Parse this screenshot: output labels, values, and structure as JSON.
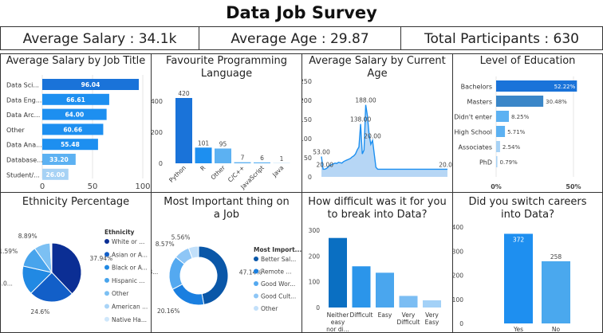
{
  "title": "Data Job Survey",
  "kpis": [
    {
      "label": "Average Salary : 34.1k"
    },
    {
      "label": "Average Age : 29.87"
    },
    {
      "label": "Total Participants : 630"
    }
  ],
  "colors": {
    "dark": "#0a57a8",
    "mid": "#1a73d9",
    "blue": "#1d8ff0",
    "light": "#5cb1f2",
    "pale": "#a7d2f5"
  },
  "chart_data": [
    {
      "id": "salary_by_title",
      "type": "bar",
      "orientation": "horizontal",
      "title": "Average Salary by Job Title",
      "categories": [
        "Data Sci...",
        "Data Eng...",
        "Data Arc...",
        "Other",
        "Data Ana...",
        "Database...",
        "Student/..."
      ],
      "values": [
        96.04,
        66.61,
        64.0,
        60.66,
        55.48,
        33.2,
        26.0
      ],
      "value_labels": [
        "96.04",
        "66.61",
        "64.00",
        "60.66",
        "55.48",
        "33.20",
        "26.00"
      ],
      "xticks": [
        "0",
        "50",
        "100"
      ],
      "xlim": [
        0,
        100
      ]
    },
    {
      "id": "fav_language",
      "type": "bar",
      "title": "Favourite Programming Language",
      "categories": [
        "Python",
        "R",
        "Other",
        "C/C++",
        "JavaScript",
        "Java"
      ],
      "values": [
        420,
        101,
        95,
        7,
        6,
        1
      ],
      "value_labels": [
        "420",
        "101",
        "95",
        "7",
        "6",
        "1"
      ],
      "ylim": [
        0,
        420
      ],
      "yticks": [
        "0",
        "200",
        "400"
      ]
    },
    {
      "id": "salary_by_age",
      "type": "area",
      "title": "Average Salary by Current Age",
      "x": [
        18,
        19,
        20,
        21,
        22,
        23,
        24,
        25,
        26,
        27,
        28,
        29,
        30,
        31,
        32,
        33,
        34,
        35,
        36,
        37,
        38,
        39,
        40,
        41,
        42,
        43,
        44,
        45,
        46,
        47,
        48,
        49,
        50,
        51,
        52,
        53,
        54,
        55,
        56,
        57,
        58,
        59,
        60,
        61,
        62,
        63,
        64,
        65,
        66,
        67,
        68,
        69,
        70,
        71,
        72,
        73,
        74,
        75,
        76,
        77,
        78,
        79,
        80,
        81,
        82,
        83,
        84,
        85,
        86,
        87,
        88,
        89,
        90,
        91,
        92
      ],
      "values": [
        53,
        20,
        20,
        22,
        26,
        30,
        32,
        34,
        36,
        35,
        38,
        37,
        36,
        40,
        42,
        44,
        46,
        48,
        52,
        55,
        60,
        70,
        78,
        138,
        60,
        70,
        188,
        160,
        110,
        85,
        95,
        60,
        25,
        20,
        20,
        20,
        20,
        20,
        20,
        20,
        20,
        20,
        20,
        20,
        20,
        20,
        20,
        20,
        20,
        20,
        20,
        20,
        20,
        20,
        20,
        20,
        20,
        20,
        20,
        20,
        20,
        20,
        20,
        20,
        20,
        20,
        20,
        20,
        20,
        20,
        20,
        20,
        20,
        20,
        20
      ],
      "data_labels": [
        {
          "x": 18,
          "text": "53.00"
        },
        {
          "x": 20,
          "text": "20.00"
        },
        {
          "x": 41,
          "text": "138.00"
        },
        {
          "x": 44,
          "text": "188.00"
        },
        {
          "x": 48,
          "text": "20.00"
        },
        {
          "x": 92,
          "text": "20.00"
        }
      ],
      "ylim": [
        0,
        260
      ],
      "yticks": [
        "0",
        "50",
        "100",
        "150",
        "200",
        "250"
      ]
    },
    {
      "id": "education",
      "type": "bar",
      "orientation": "horizontal",
      "title": "Level of Education",
      "categories": [
        "Bachelors",
        "Masters",
        "Didn't enter",
        "High School",
        "Associates",
        "PhD"
      ],
      "values": [
        52.22,
        30.48,
        8.25,
        5.71,
        2.54,
        0.79
      ],
      "value_labels": [
        "52.22%",
        "30.48%",
        "8.25%",
        "5.71%",
        "2.54%",
        "0.79%"
      ],
      "xticks": [
        "0%",
        "50%"
      ],
      "xlim": [
        0,
        55
      ]
    },
    {
      "id": "ethnicity",
      "type": "pie",
      "title": "Ethnicity Percentage",
      "legend_title": "Ethnicity",
      "legend_placement": "right",
      "labels": [
        "White or ...",
        "Asian or A...",
        "Black or A...",
        "Hispanic ...",
        "Other",
        "American ...",
        "Native Ha..."
      ],
      "values": [
        37.94,
        24.6,
        16.0,
        11.59,
        8.89,
        0.6,
        0.38
      ],
      "slice_labels": [
        "37.94%",
        "24.6%",
        "16.0...",
        "11.59%",
        "8.89%",
        "",
        ""
      ],
      "colors": [
        "#0b2e94",
        "#125fc8",
        "#2189e3",
        "#48a4ec",
        "#7cc0f3",
        "#a9d4f7",
        "#cfe7fb"
      ]
    },
    {
      "id": "important_thing",
      "type": "pie",
      "donut": true,
      "title": "Most Important thing on a Job",
      "legend_title": "Most Import...",
      "legend_placement": "right",
      "labels": [
        "Better Sal...",
        "Remote ...",
        "Good Wor...",
        "Good Cult...",
        "Other"
      ],
      "values": [
        47.14,
        20.16,
        18.6,
        8.57,
        5.56
      ],
      "slice_labels": [
        "47.14%",
        "20.16%",
        "18...",
        "8.57%",
        "5.56%"
      ],
      "colors": [
        "#0a57a8",
        "#1a7fe0",
        "#54a9f0",
        "#8ec6f6",
        "#c2e0fa"
      ]
    },
    {
      "id": "difficulty",
      "type": "bar",
      "title": "How difficult was it for you to break into Data?",
      "categories": [
        "Neither easy nor di...",
        "Difficult",
        "Easy",
        "Very Difficult",
        "Very Easy"
      ],
      "category_lines": [
        [
          "Neither",
          "easy",
          "nor di..."
        ],
        [
          "Difficult"
        ],
        [
          "Easy"
        ],
        [
          "Very",
          "Difficult"
        ],
        [
          "Very",
          "Easy"
        ]
      ],
      "values": [
        270,
        160,
        135,
        45,
        28
      ],
      "colors": [
        "#0a6fc2",
        "#2b95ea",
        "#4aa6ee",
        "#7bbdf3",
        "#a3d1f7"
      ],
      "ylim": [
        0,
        300
      ],
      "yticks": [
        "0",
        "100",
        "200",
        "300"
      ]
    },
    {
      "id": "switch_careers",
      "type": "bar",
      "title": "Did you switch careers into Data?",
      "categories": [
        "Yes",
        "No"
      ],
      "values": [
        372,
        258
      ],
      "value_labels": [
        "372",
        "258"
      ],
      "colors": [
        "#1e8ff0",
        "#4aa8ee"
      ],
      "ylim": [
        0,
        400
      ],
      "yticks": [
        "0",
        "100",
        "200",
        "300",
        "400"
      ]
    }
  ]
}
